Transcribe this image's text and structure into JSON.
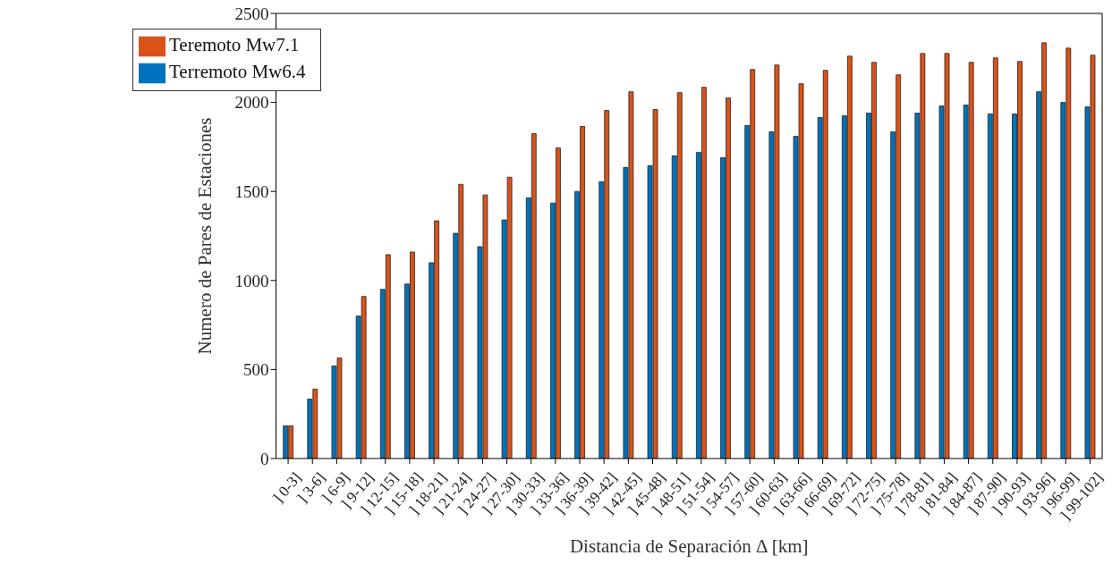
{
  "chart_data": {
    "type": "bar",
    "xlabel": "Distancia de Separación Δ [km]",
    "ylabel": "Numero de Pares de Estaciones",
    "categories": [
      "] 0-3]",
      "] 3-6]",
      "] 6-9]",
      "] 9-12]",
      "] 12-15]",
      "] 15-18]",
      "] 18-21]",
      "] 21-24]",
      "] 24-27]",
      "] 27-30]",
      "] 30-33]",
      "] 33-36]",
      "] 36-39]",
      "] 39-42]",
      "] 42-45]",
      "] 45-48]",
      "] 48-51]",
      "] 51-54]",
      "] 54-57]",
      "] 57-60]",
      "] 60-63]",
      "] 63-66]",
      "] 66-69]",
      "] 69-72]",
      "] 72-75]",
      "] 75-78]",
      "] 78-81]",
      "] 81-84]",
      "] 84-87]",
      "] 87-90]",
      "] 90-93]",
      "] 93-96]",
      "] 96-99]",
      "] 99-102]"
    ],
    "series": [
      {
        "name": "Terremoto Mw6.4",
        "color": "#0072bd",
        "values": [
          184,
          334,
          520,
          800,
          950,
          980,
          1100,
          1265,
          1190,
          1340,
          1465,
          1435,
          1500,
          1555,
          1635,
          1645,
          1700,
          1720,
          1690,
          1870,
          1835,
          1810,
          1915,
          1925,
          1940,
          1835,
          1940,
          1980,
          1985,
          1935,
          1935,
          2060,
          2000,
          1975
        ]
      },
      {
        "name": "Teremoto Mw7.1",
        "color": "#d95319",
        "values": [
          184,
          390,
          565,
          910,
          1145,
          1160,
          1335,
          1540,
          1480,
          1580,
          1825,
          1745,
          1865,
          1955,
          2060,
          1960,
          2055,
          2085,
          2025,
          2185,
          2210,
          2105,
          2180,
          2260,
          2225,
          2155,
          2275,
          2275,
          2225,
          2250,
          2230,
          2335,
          2305,
          2265
        ]
      }
    ],
    "ylim": [
      0,
      2500
    ],
    "yticks": [
      0,
      500,
      1000,
      1500,
      2000,
      2500
    ],
    "grid": false,
    "legend": "top left"
  }
}
